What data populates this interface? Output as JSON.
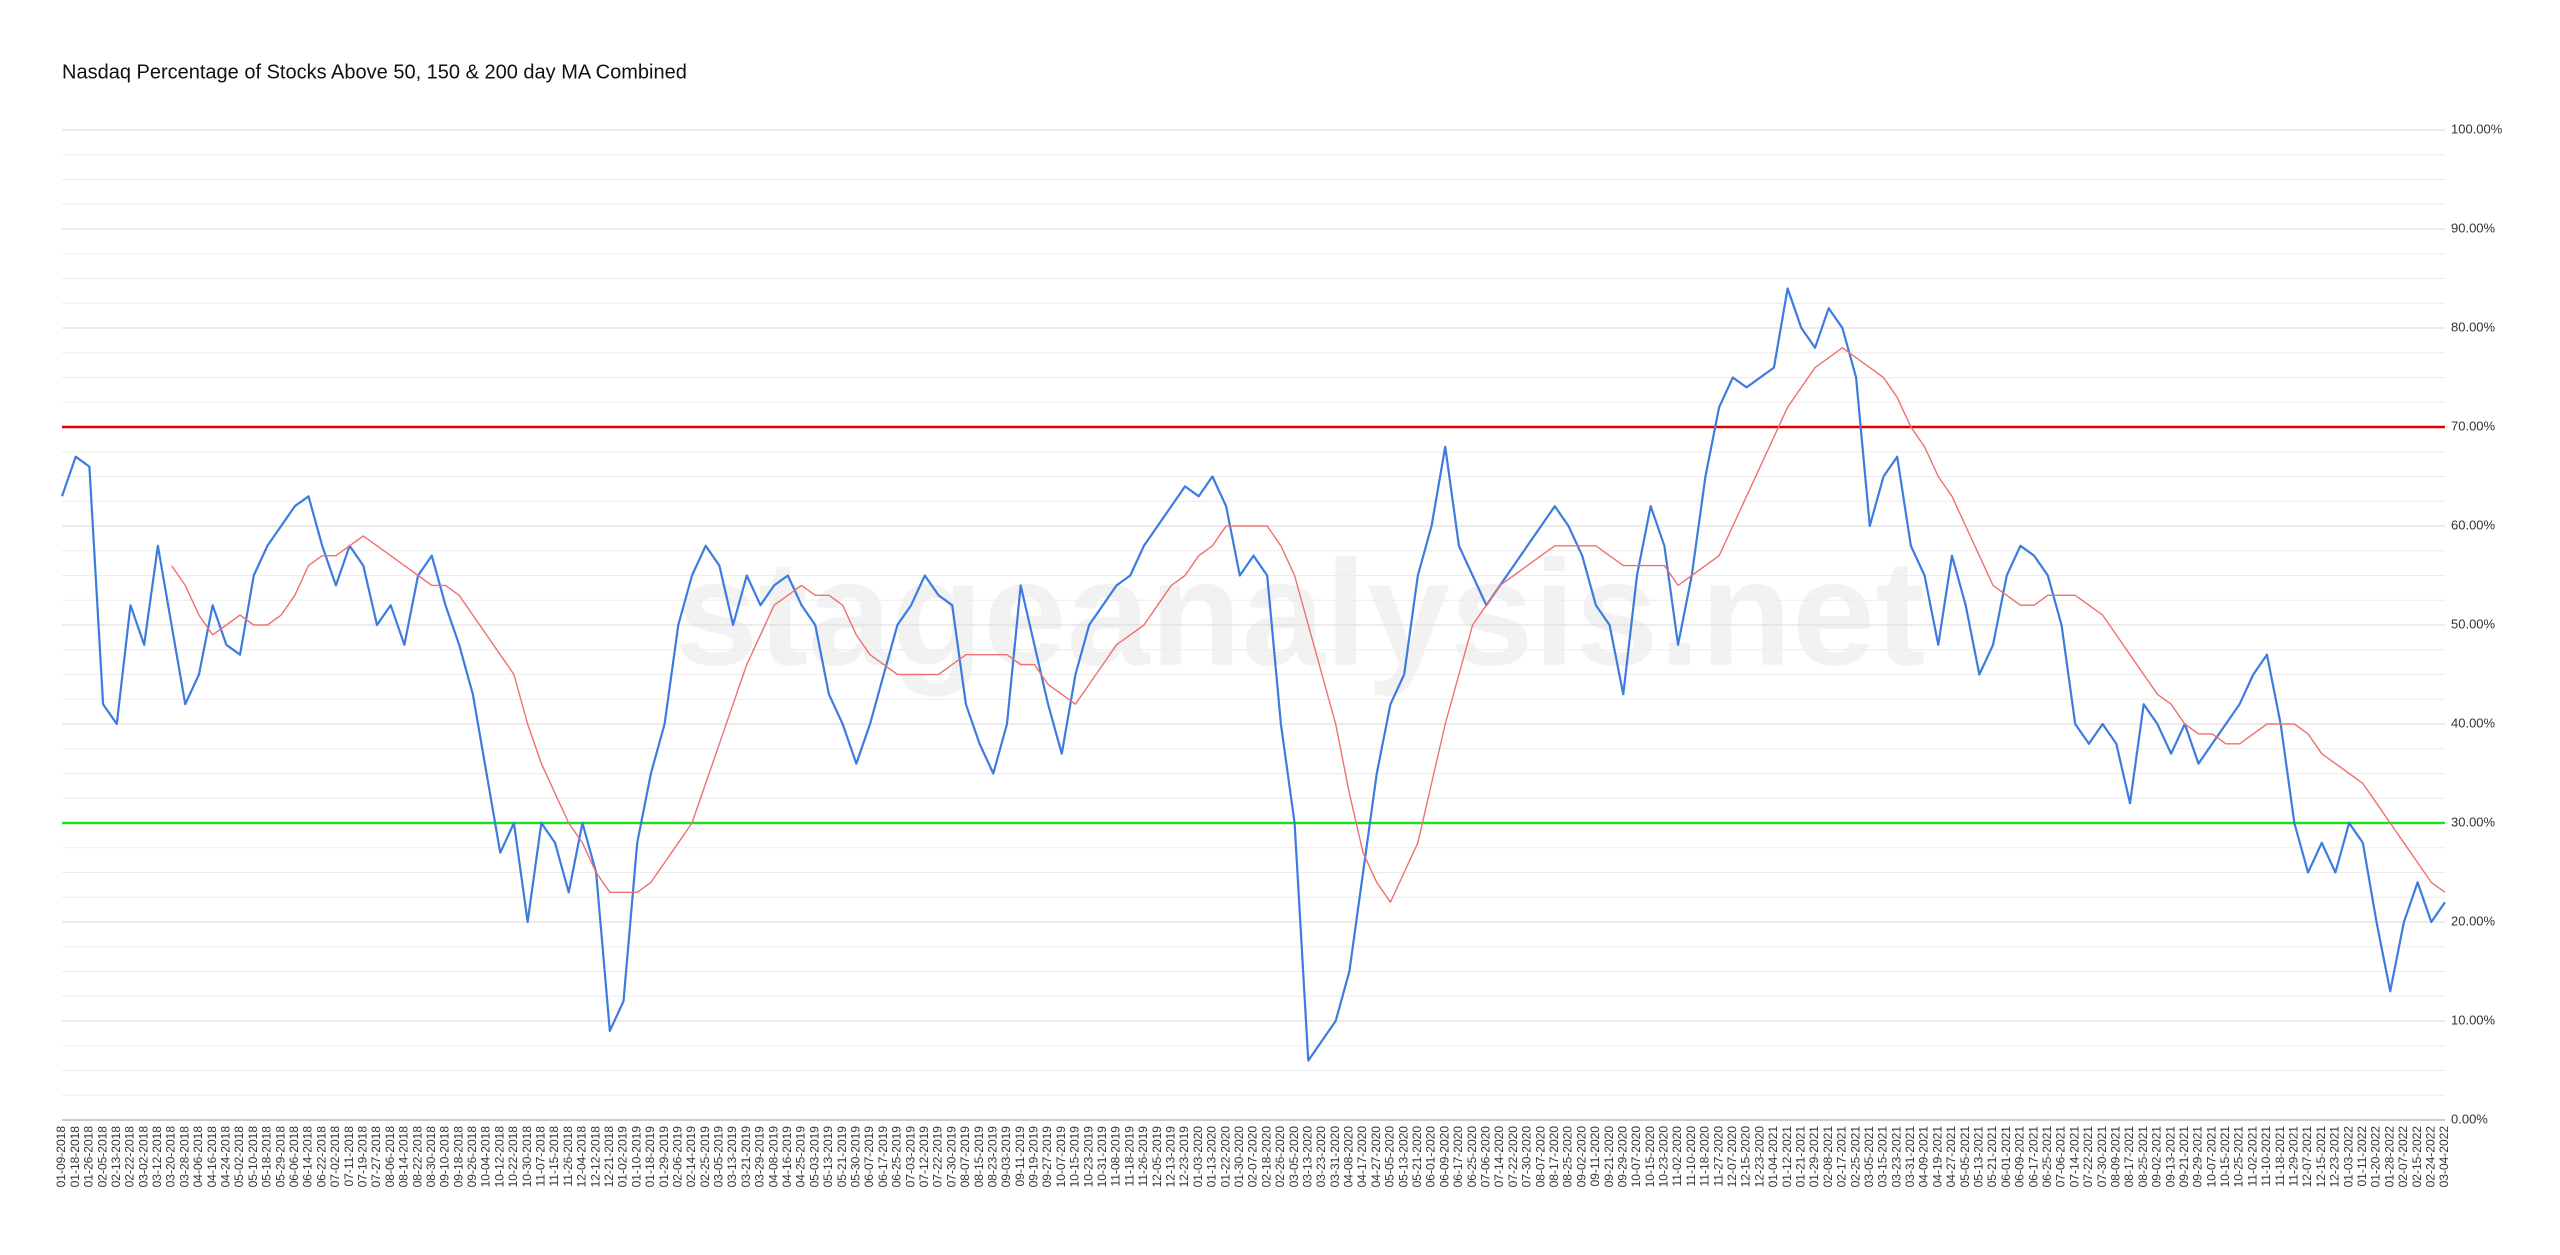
{
  "chart_data": {
    "type": "line",
    "title": "Nasdaq Percentage of Stocks Above 50, 150 & 200 day MA Combined",
    "watermark": "stageanalysis.net",
    "categories": [
      "01-09-2018",
      "01-18-2018",
      "01-26-2018",
      "02-05-2018",
      "02-13-2018",
      "02-22-2018",
      "03-02-2018",
      "03-12-2018",
      "03-20-2018",
      "03-28-2018",
      "04-06-2018",
      "04-16-2018",
      "04-24-2018",
      "05-02-2018",
      "05-10-2018",
      "05-18-2018",
      "05-29-2018",
      "06-06-2018",
      "06-14-2018",
      "06-22-2018",
      "07-02-2018",
      "07-11-2018",
      "07-19-2018",
      "07-27-2018",
      "08-06-2018",
      "08-14-2018",
      "08-22-2018",
      "08-30-2018",
      "09-10-2018",
      "09-18-2018",
      "09-26-2018",
      "10-04-2018",
      "10-12-2018",
      "10-22-2018",
      "10-30-2018",
      "11-07-2018",
      "11-15-2018",
      "11-26-2018",
      "12-04-2018",
      "12-12-2018",
      "12-21-2018",
      "01-02-2019",
      "01-10-2019",
      "01-18-2019",
      "01-29-2019",
      "02-06-2019",
      "02-14-2019",
      "02-25-2019",
      "03-05-2019",
      "03-13-2019",
      "03-21-2019",
      "03-29-2019",
      "04-08-2019",
      "04-16-2019",
      "04-25-2019",
      "05-03-2019",
      "05-13-2019",
      "05-21-2019",
      "05-30-2019",
      "06-07-2019",
      "06-17-2019",
      "06-25-2019",
      "07-03-2019",
      "07-12-2019",
      "07-22-2019",
      "07-30-2019",
      "08-07-2019",
      "08-15-2019",
      "08-23-2019",
      "09-03-2019",
      "09-11-2019",
      "09-19-2019",
      "09-27-2019",
      "10-07-2019",
      "10-15-2019",
      "10-23-2019",
      "10-31-2019",
      "11-08-2019",
      "11-18-2019",
      "11-26-2019",
      "12-05-2019",
      "12-13-2019",
      "12-23-2019",
      "01-03-2020",
      "01-13-2020",
      "01-22-2020",
      "01-30-2020",
      "02-07-2020",
      "02-18-2020",
      "02-26-2020",
      "03-05-2020",
      "03-13-2020",
      "03-23-2020",
      "03-31-2020",
      "04-08-2020",
      "04-17-2020",
      "04-27-2020",
      "05-05-2020",
      "05-13-2020",
      "05-21-2020",
      "06-01-2020",
      "06-09-2020",
      "06-17-2020",
      "06-25-2020",
      "07-06-2020",
      "07-14-2020",
      "07-22-2020",
      "07-30-2020",
      "08-07-2020",
      "08-17-2020",
      "08-25-2020",
      "09-02-2020",
      "09-11-2020",
      "09-21-2020",
      "09-29-2020",
      "10-07-2020",
      "10-15-2020",
      "10-23-2020",
      "11-02-2020",
      "11-10-2020",
      "11-18-2020",
      "11-27-2020",
      "12-07-2020",
      "12-15-2020",
      "12-23-2020",
      "01-04-2021",
      "01-12-2021",
      "01-21-2021",
      "01-29-2021",
      "02-08-2021",
      "02-17-2021",
      "02-25-2021",
      "03-05-2021",
      "03-15-2021",
      "03-23-2021",
      "03-31-2021",
      "04-09-2021",
      "04-19-2021",
      "04-27-2021",
      "05-05-2021",
      "05-13-2021",
      "05-21-2021",
      "06-01-2021",
      "06-09-2021",
      "06-17-2021",
      "06-25-2021",
      "07-06-2021",
      "07-14-2021",
      "07-22-2021",
      "07-30-2021",
      "08-09-2021",
      "08-17-2021",
      "08-25-2021",
      "09-02-2021",
      "09-13-2021",
      "09-21-2021",
      "09-29-2021",
      "10-07-2021",
      "10-15-2021",
      "10-25-2021",
      "11-02-2021",
      "11-10-2021",
      "11-18-2021",
      "11-29-2021",
      "12-07-2021",
      "12-15-2021",
      "12-23-2021",
      "01-03-2022",
      "01-11-2022",
      "01-20-2022",
      "01-28-2022",
      "02-07-2022",
      "02-15-2022",
      "02-24-2022",
      "03-04-2022"
    ],
    "series": [
      {
        "color": "#3c7be0",
        "width": 2.2,
        "values": [
          63,
          67,
          66,
          42,
          40,
          52,
          48,
          58,
          50,
          42,
          45,
          52,
          48,
          47,
          55,
          58,
          60,
          62,
          63,
          58,
          54,
          58,
          56,
          50,
          52,
          48,
          55,
          57,
          52,
          48,
          43,
          35,
          27,
          30,
          20,
          30,
          28,
          23,
          30,
          25,
          9,
          12,
          28,
          35,
          40,
          50,
          55,
          58,
          56,
          50,
          55,
          52,
          54,
          55,
          52,
          50,
          43,
          40,
          36,
          40,
          45,
          50,
          52,
          55,
          53,
          52,
          42,
          38,
          35,
          40,
          54,
          48,
          42,
          37,
          45,
          50,
          52,
          54,
          55,
          58,
          60,
          62,
          64,
          63,
          65,
          62,
          55,
          57,
          55,
          40,
          30,
          6,
          8,
          10,
          15,
          25,
          35,
          42,
          45,
          55,
          60,
          68,
          58,
          55,
          52,
          54,
          56,
          58,
          60,
          62,
          60,
          57,
          52,
          50,
          43,
          55,
          62,
          58,
          48,
          55,
          65,
          72,
          75,
          74,
          75,
          76,
          84,
          80,
          78,
          82,
          80,
          75,
          60,
          65,
          67,
          58,
          55,
          48,
          57,
          52,
          45,
          48,
          55,
          58,
          57,
          55,
          50,
          40,
          38,
          40,
          38,
          32,
          42,
          40,
          37,
          40,
          36,
          38,
          40,
          42,
          45,
          47,
          40,
          30,
          25,
          28,
          25,
          30,
          28,
          20,
          13,
          20,
          24,
          20,
          22
        ]
      },
      {
        "color": "#f07070",
        "width": 1.4,
        "values": [
          null,
          null,
          null,
          null,
          null,
          null,
          null,
          null,
          56,
          54,
          51,
          49,
          50,
          51,
          50,
          50,
          51,
          53,
          56,
          57,
          57,
          58,
          59,
          58,
          57,
          56,
          55,
          54,
          54,
          53,
          51,
          49,
          47,
          45,
          40,
          36,
          33,
          30,
          28,
          25,
          23,
          23,
          23,
          24,
          26,
          28,
          30,
          34,
          38,
          42,
          46,
          49,
          52,
          53,
          54,
          53,
          53,
          52,
          49,
          47,
          46,
          45,
          45,
          45,
          45,
          46,
          47,
          47,
          47,
          47,
          46,
          46,
          44,
          43,
          42,
          44,
          46,
          48,
          49,
          50,
          52,
          54,
          55,
          57,
          58,
          60,
          60,
          60,
          60,
          58,
          55,
          50,
          45,
          40,
          33,
          27,
          24,
          22,
          25,
          28,
          34,
          40,
          45,
          50,
          52,
          54,
          55,
          56,
          57,
          58,
          58,
          58,
          58,
          57,
          56,
          56,
          56,
          56,
          54,
          55,
          56,
          57,
          60,
          63,
          66,
          69,
          72,
          74,
          76,
          77,
          78,
          77,
          76,
          75,
          73,
          70,
          68,
          65,
          63,
          60,
          57,
          54,
          53,
          52,
          52,
          53,
          53,
          53,
          52,
          51,
          49,
          47,
          45,
          43,
          42,
          40,
          39,
          39,
          38,
          38,
          39,
          40,
          40,
          40,
          39,
          37,
          36,
          35,
          34,
          32,
          30,
          28,
          26,
          24,
          23
        ]
      }
    ],
    "reference_lines": [
      {
        "value": 70,
        "color": "#e00000"
      },
      {
        "value": 30,
        "color": "#22dd22"
      }
    ],
    "ylim": [
      0,
      100
    ],
    "yticks": [
      {
        "value": 0,
        "label": "0.00%"
      },
      {
        "value": 10,
        "label": "10.00%"
      },
      {
        "value": 20,
        "label": "20.00%"
      },
      {
        "value": 30,
        "label": "30.00%"
      },
      {
        "value": 40,
        "label": "40.00%"
      },
      {
        "value": 50,
        "label": "50.00%"
      },
      {
        "value": 60,
        "label": "60.00%"
      },
      {
        "value": 70,
        "label": "70.00%"
      },
      {
        "value": 80,
        "label": "80.00%"
      },
      {
        "value": 90,
        "label": "90.00%"
      },
      {
        "value": 100,
        "label": "100.00%"
      }
    ],
    "y_axis_side": "right",
    "grid": true
  }
}
